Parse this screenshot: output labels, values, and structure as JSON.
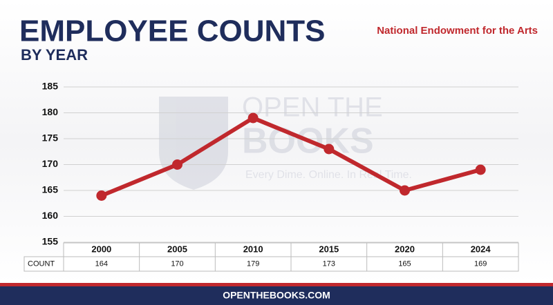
{
  "chart_data": {
    "type": "line",
    "title": "EMPLOYEE COUNTS",
    "subtitle": "BY YEAR",
    "source": "National Endowment for the Arts",
    "watermark": {
      "line1": "OPEN THE",
      "line2": "BOOKS",
      "tagline": "Every Dime. Online. In Real Time."
    },
    "footer": "OPENTHEBOOKS.COM",
    "categories": [
      "2000",
      "2005",
      "2010",
      "2015",
      "2020",
      "2024"
    ],
    "series": [
      {
        "name": "COUNT",
        "color": "#c0282d",
        "values": [
          164,
          170,
          179,
          173,
          165,
          169
        ]
      }
    ],
    "ylim": [
      155,
      185
    ],
    "yticks": [
      155,
      160,
      165,
      170,
      175,
      180,
      185
    ],
    "grid": true
  }
}
